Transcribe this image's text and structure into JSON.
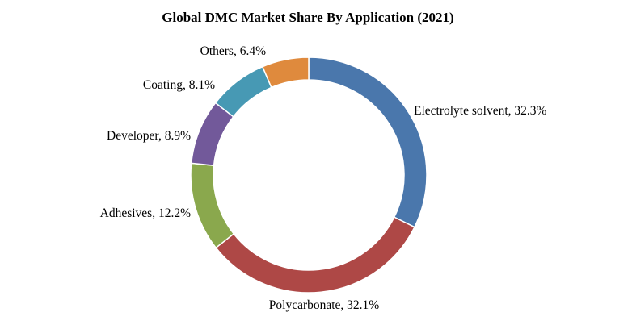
{
  "chart_data": {
    "type": "pie",
    "title": "Global DMC Market Share By Application (2021)",
    "unit": "%",
    "slices": [
      {
        "name": "Electrolyte solvent",
        "value": 32.3,
        "label": "Electrolyte solvent, 32.3%",
        "color": "#4a77ac"
      },
      {
        "name": "Polycarbonate",
        "value": 32.1,
        "label": "Polycarbonate, 32.1%",
        "color": "#ae4846"
      },
      {
        "name": "Adhesives",
        "value": 12.2,
        "label": "Adhesives, 12.2%",
        "color": "#8aa84d"
      },
      {
        "name": "Developer",
        "value": 8.9,
        "label": "Developer, 8.9%",
        "color": "#72599a"
      },
      {
        "name": "Coating",
        "value": 8.1,
        "label": "Coating, 8.1%",
        "color": "#4799b4"
      },
      {
        "name": "Others",
        "value": 6.4,
        "label": "Others, 6.4%",
        "color": "#df8a3d"
      }
    ]
  }
}
